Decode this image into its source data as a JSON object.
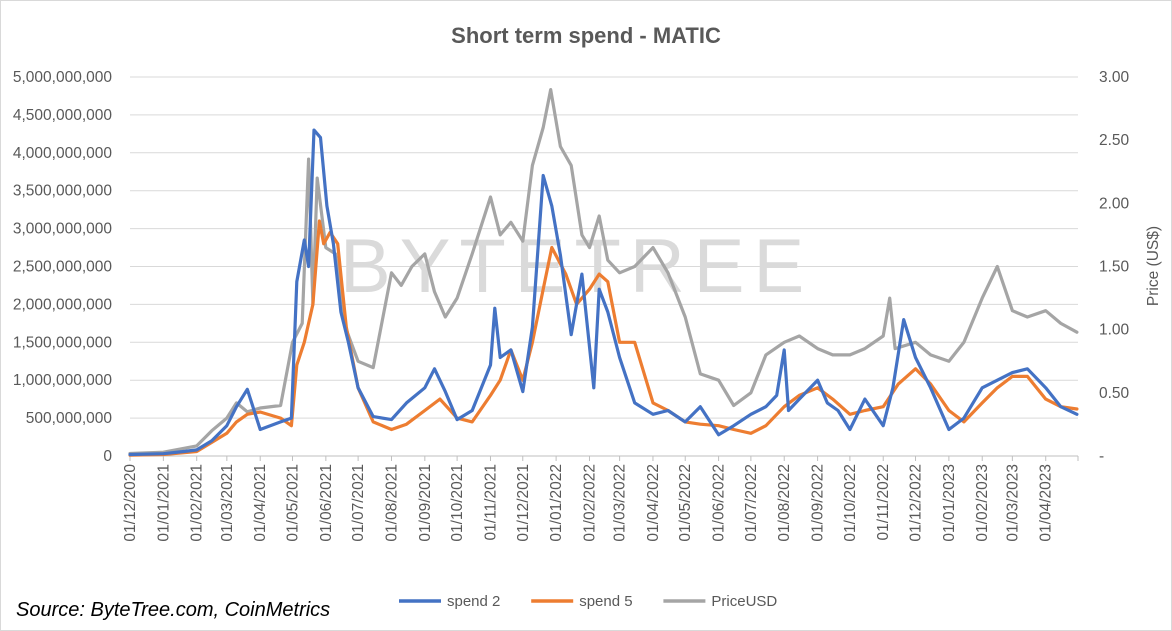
{
  "chart_data": {
    "type": "line",
    "title": "Short term spend - MATIC",
    "ylabel_right": "Price (US$)",
    "watermark": "BYTETREE",
    "source": "Source: ByteTree.com, CoinMetrics",
    "y_left_ticks": [
      "0",
      "500,000,000",
      "1,000,000,000",
      "1,500,000,000",
      "2,000,000,000",
      "2,500,000,000",
      "3,000,000,000",
      "3,500,000,000",
      "4,000,000,000",
      "4,500,000,000",
      "5,000,000,000"
    ],
    "y_right_ticks": [
      "-",
      "0.50",
      "1.00",
      "1.50",
      "2.00",
      "2.50",
      "3.00"
    ],
    "ylim_left": [
      0,
      5000000000
    ],
    "ylim_right": [
      0,
      3
    ],
    "x_ticks": [
      "01/12/2020",
      "01/01/2021",
      "01/02/2021",
      "01/03/2021",
      "01/04/2021",
      "01/05/2021",
      "01/06/2021",
      "01/07/2021",
      "01/08/2021",
      "01/09/2021",
      "01/10/2021",
      "01/11/2021",
      "01/12/2021",
      "01/01/2022",
      "01/02/2022",
      "01/03/2022",
      "01/04/2022",
      "01/05/2022",
      "01/06/2022",
      "01/07/2022",
      "01/08/2022",
      "01/09/2022",
      "01/10/2022",
      "01/11/2022",
      "01/12/2022",
      "01/01/2023",
      "01/02/2023",
      "01/03/2023",
      "01/04/2023"
    ],
    "x_end": "01/05/2023",
    "legend_position": "bottom",
    "grid": true,
    "series": [
      {
        "name": "spend 2",
        "axis": "left",
        "color": "#4472c4",
        "points": [
          [
            "01/12/2020",
            20000000
          ],
          [
            "01/01/2021",
            30000000
          ],
          [
            "20/01/2021",
            60000000
          ],
          [
            "01/02/2021",
            80000000
          ],
          [
            "15/02/2021",
            200000000
          ],
          [
            "01/03/2021",
            400000000
          ],
          [
            "10/03/2021",
            650000000
          ],
          [
            "20/03/2021",
            880000000
          ],
          [
            "01/04/2021",
            350000000
          ],
          [
            "20/04/2021",
            450000000
          ],
          [
            "30/04/2021",
            500000000
          ],
          [
            "05/05/2021",
            2300000000
          ],
          [
            "12/05/2021",
            2850000000
          ],
          [
            "16/05/2021",
            2500000000
          ],
          [
            "21/05/2021",
            4300000000
          ],
          [
            "27/05/2021",
            4200000000
          ],
          [
            "02/06/2021",
            3300000000
          ],
          [
            "08/06/2021",
            2800000000
          ],
          [
            "15/06/2021",
            1900000000
          ],
          [
            "22/06/2021",
            1500000000
          ],
          [
            "01/07/2021",
            900000000
          ],
          [
            "15/07/2021",
            520000000
          ],
          [
            "01/08/2021",
            480000000
          ],
          [
            "15/08/2021",
            700000000
          ],
          [
            "01/09/2021",
            900000000
          ],
          [
            "10/09/2021",
            1150000000
          ],
          [
            "20/09/2021",
            850000000
          ],
          [
            "01/10/2021",
            480000000
          ],
          [
            "15/10/2021",
            600000000
          ],
          [
            "01/11/2021",
            1200000000
          ],
          [
            "05/11/2021",
            1950000000
          ],
          [
            "10/11/2021",
            1300000000
          ],
          [
            "20/11/2021",
            1400000000
          ],
          [
            "01/12/2021",
            850000000
          ],
          [
            "10/12/2021",
            1700000000
          ],
          [
            "20/12/2021",
            3700000000
          ],
          [
            "28/12/2021",
            3300000000
          ],
          [
            "05/01/2022",
            2650000000
          ],
          [
            "15/01/2022",
            1600000000
          ],
          [
            "25/01/2022",
            2400000000
          ],
          [
            "05/02/2022",
            900000000
          ],
          [
            "10/02/2022",
            2200000000
          ],
          [
            "18/02/2022",
            1900000000
          ],
          [
            "01/03/2022",
            1300000000
          ],
          [
            "15/03/2022",
            700000000
          ],
          [
            "01/04/2022",
            550000000
          ],
          [
            "15/04/2022",
            600000000
          ],
          [
            "01/05/2022",
            450000000
          ],
          [
            "15/05/2022",
            650000000
          ],
          [
            "01/06/2022",
            280000000
          ],
          [
            "15/06/2022",
            400000000
          ],
          [
            "01/07/2022",
            550000000
          ],
          [
            "15/07/2022",
            650000000
          ],
          [
            "25/07/2022",
            800000000
          ],
          [
            "01/08/2022",
            1400000000
          ],
          [
            "05/08/2022",
            600000000
          ],
          [
            "15/08/2022",
            750000000
          ],
          [
            "01/09/2022",
            1000000000
          ],
          [
            "10/09/2022",
            700000000
          ],
          [
            "20/09/2022",
            600000000
          ],
          [
            "01/10/2022",
            350000000
          ],
          [
            "15/10/2022",
            750000000
          ],
          [
            "01/11/2022",
            400000000
          ],
          [
            "10/11/2022",
            900000000
          ],
          [
            "20/11/2022",
            1800000000
          ],
          [
            "01/12/2022",
            1300000000
          ],
          [
            "15/12/2022",
            900000000
          ],
          [
            "01/01/2023",
            350000000
          ],
          [
            "15/01/2023",
            500000000
          ],
          [
            "01/02/2023",
            900000000
          ],
          [
            "15/02/2023",
            1000000000
          ],
          [
            "01/03/2023",
            1100000000
          ],
          [
            "15/03/2023",
            1150000000
          ],
          [
            "01/04/2023",
            900000000
          ],
          [
            "15/04/2023",
            650000000
          ],
          [
            "30/04/2023",
            550000000
          ]
        ]
      },
      {
        "name": "spend 5",
        "axis": "left",
        "color": "#ed7d31",
        "points": [
          [
            "01/12/2020",
            10000000
          ],
          [
            "01/01/2021",
            20000000
          ],
          [
            "01/02/2021",
            60000000
          ],
          [
            "01/03/2021",
            300000000
          ],
          [
            "10/03/2021",
            450000000
          ],
          [
            "20/03/2021",
            550000000
          ],
          [
            "01/04/2021",
            580000000
          ],
          [
            "20/04/2021",
            500000000
          ],
          [
            "30/04/2021",
            400000000
          ],
          [
            "05/05/2021",
            1200000000
          ],
          [
            "12/05/2021",
            1500000000
          ],
          [
            "20/05/2021",
            2000000000
          ],
          [
            "26/05/2021",
            3100000000
          ],
          [
            "30/05/2021",
            2800000000
          ],
          [
            "05/06/2021",
            2950000000
          ],
          [
            "12/06/2021",
            2800000000
          ],
          [
            "20/06/2021",
            1700000000
          ],
          [
            "01/07/2021",
            900000000
          ],
          [
            "15/07/2021",
            450000000
          ],
          [
            "01/08/2021",
            350000000
          ],
          [
            "15/08/2021",
            420000000
          ],
          [
            "01/09/2021",
            600000000
          ],
          [
            "15/09/2021",
            750000000
          ],
          [
            "01/10/2021",
            500000000
          ],
          [
            "15/10/2021",
            450000000
          ],
          [
            "01/11/2021",
            800000000
          ],
          [
            "10/11/2021",
            1000000000
          ],
          [
            "20/11/2021",
            1400000000
          ],
          [
            "01/12/2021",
            1000000000
          ],
          [
            "10/12/2021",
            1500000000
          ],
          [
            "20/12/2021",
            2200000000
          ],
          [
            "28/12/2021",
            2750000000
          ],
          [
            "10/01/2022",
            2400000000
          ],
          [
            "20/01/2022",
            2000000000
          ],
          [
            "01/02/2022",
            2200000000
          ],
          [
            "10/02/2022",
            2400000000
          ],
          [
            "18/02/2022",
            2300000000
          ],
          [
            "01/03/2022",
            1500000000
          ],
          [
            "15/03/2022",
            1500000000
          ],
          [
            "01/04/2022",
            700000000
          ],
          [
            "15/04/2022",
            600000000
          ],
          [
            "01/05/2022",
            450000000
          ],
          [
            "15/05/2022",
            420000000
          ],
          [
            "01/06/2022",
            400000000
          ],
          [
            "15/06/2022",
            350000000
          ],
          [
            "01/07/2022",
            300000000
          ],
          [
            "15/07/2022",
            400000000
          ],
          [
            "01/08/2022",
            650000000
          ],
          [
            "15/08/2022",
            800000000
          ],
          [
            "01/09/2022",
            900000000
          ],
          [
            "15/09/2022",
            750000000
          ],
          [
            "01/10/2022",
            550000000
          ],
          [
            "15/10/2022",
            600000000
          ],
          [
            "01/11/2022",
            650000000
          ],
          [
            "15/11/2022",
            950000000
          ],
          [
            "01/12/2022",
            1150000000
          ],
          [
            "15/12/2022",
            950000000
          ],
          [
            "01/01/2023",
            600000000
          ],
          [
            "15/01/2023",
            450000000
          ],
          [
            "01/02/2023",
            700000000
          ],
          [
            "15/02/2023",
            900000000
          ],
          [
            "01/03/2023",
            1050000000
          ],
          [
            "15/03/2023",
            1050000000
          ],
          [
            "01/04/2023",
            750000000
          ],
          [
            "15/04/2023",
            650000000
          ],
          [
            "30/04/2023",
            620000000
          ]
        ]
      },
      {
        "name": "PriceUSD",
        "axis": "right",
        "color": "#a5a5a5",
        "points": [
          [
            "01/12/2020",
            0.02
          ],
          [
            "01/01/2021",
            0.03
          ],
          [
            "01/02/2021",
            0.08
          ],
          [
            "15/02/2021",
            0.2
          ],
          [
            "01/03/2021",
            0.3
          ],
          [
            "10/03/2021",
            0.42
          ],
          [
            "20/03/2021",
            0.35
          ],
          [
            "01/04/2021",
            0.38
          ],
          [
            "20/04/2021",
            0.4
          ],
          [
            "01/05/2021",
            0.9
          ],
          [
            "10/05/2021",
            1.05
          ],
          [
            "16/05/2021",
            2.35
          ],
          [
            "20/05/2021",
            1.2
          ],
          [
            "24/05/2021",
            2.2
          ],
          [
            "01/06/2021",
            1.65
          ],
          [
            "10/06/2021",
            1.6
          ],
          [
            "20/06/2021",
            1.0
          ],
          [
            "01/07/2021",
            0.75
          ],
          [
            "15/07/2021",
            0.7
          ],
          [
            "01/08/2021",
            1.45
          ],
          [
            "10/08/2021",
            1.35
          ],
          [
            "20/08/2021",
            1.5
          ],
          [
            "01/09/2021",
            1.6
          ],
          [
            "10/09/2021",
            1.3
          ],
          [
            "20/09/2021",
            1.1
          ],
          [
            "01/10/2021",
            1.25
          ],
          [
            "15/10/2021",
            1.6
          ],
          [
            "01/11/2021",
            2.05
          ],
          [
            "10/11/2021",
            1.75
          ],
          [
            "20/11/2021",
            1.85
          ],
          [
            "01/12/2021",
            1.7
          ],
          [
            "10/12/2021",
            2.3
          ],
          [
            "20/12/2021",
            2.6
          ],
          [
            "27/12/2021",
            2.9
          ],
          [
            "05/01/2022",
            2.45
          ],
          [
            "15/01/2022",
            2.3
          ],
          [
            "25/01/2022",
            1.75
          ],
          [
            "01/02/2022",
            1.65
          ],
          [
            "10/02/2022",
            1.9
          ],
          [
            "18/02/2022",
            1.55
          ],
          [
            "01/03/2022",
            1.45
          ],
          [
            "15/03/2022",
            1.5
          ],
          [
            "01/04/2022",
            1.65
          ],
          [
            "15/04/2022",
            1.45
          ],
          [
            "01/05/2022",
            1.1
          ],
          [
            "15/05/2022",
            0.65
          ],
          [
            "01/06/2022",
            0.6
          ],
          [
            "15/06/2022",
            0.4
          ],
          [
            "01/07/2022",
            0.5
          ],
          [
            "15/07/2022",
            0.8
          ],
          [
            "01/08/2022",
            0.9
          ],
          [
            "15/08/2022",
            0.95
          ],
          [
            "01/09/2022",
            0.85
          ],
          [
            "15/09/2022",
            0.8
          ],
          [
            "01/10/2022",
            0.8
          ],
          [
            "15/10/2022",
            0.85
          ],
          [
            "01/11/2022",
            0.95
          ],
          [
            "07/11/2022",
            1.25
          ],
          [
            "12/11/2022",
            0.85
          ],
          [
            "01/12/2022",
            0.9
          ],
          [
            "15/12/2022",
            0.8
          ],
          [
            "01/01/2023",
            0.75
          ],
          [
            "15/01/2023",
            0.9
          ],
          [
            "01/02/2023",
            1.25
          ],
          [
            "15/02/2023",
            1.5
          ],
          [
            "01/03/2023",
            1.15
          ],
          [
            "15/03/2023",
            1.1
          ],
          [
            "01/04/2023",
            1.15
          ],
          [
            "15/04/2023",
            1.05
          ],
          [
            "30/04/2023",
            0.98
          ]
        ]
      }
    ]
  }
}
